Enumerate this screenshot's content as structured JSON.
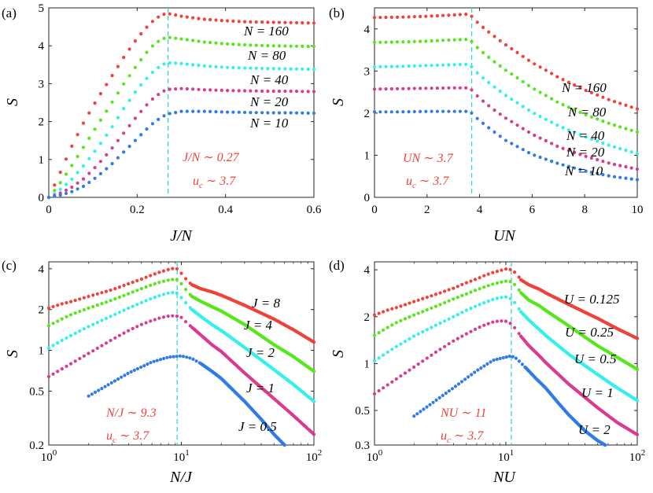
{
  "chart_data": [
    {
      "type": "scatter",
      "panel_label": "(a)",
      "xlabel": "J/N",
      "ylabel": "S",
      "xscale": "linear",
      "yscale": "linear",
      "xlim": [
        0,
        0.6
      ],
      "ylim": [
        0,
        5
      ],
      "xticks": [
        0,
        0.2,
        0.4,
        0.6
      ],
      "xtick_labels": [
        "0",
        "0.2",
        "0.4",
        "0.6"
      ],
      "yticks": [
        0,
        1,
        2,
        3,
        4,
        5
      ],
      "ytick_labels": [
        "0",
        "1",
        "2",
        "3",
        "4",
        "5"
      ],
      "series": [
        {
          "name": "N = 160",
          "color": "#f0413a",
          "x": [
            0,
            0.02,
            0.05,
            0.08,
            0.11,
            0.14,
            0.17,
            0.2,
            0.23,
            0.255,
            0.27,
            0.3,
            0.35,
            0.4,
            0.45,
            0.5,
            0.55,
            0.6
          ],
          "y": [
            0,
            0.5,
            1.3,
            2.0,
            2.6,
            3.15,
            3.7,
            4.2,
            4.6,
            4.82,
            4.85,
            4.78,
            4.7,
            4.66,
            4.63,
            4.62,
            4.61,
            4.6
          ]
        },
        {
          "name": "N = 80",
          "color": "#55e71a",
          "x": [
            0,
            0.02,
            0.05,
            0.08,
            0.11,
            0.14,
            0.17,
            0.2,
            0.23,
            0.255,
            0.27,
            0.3,
            0.35,
            0.4,
            0.45,
            0.5,
            0.55,
            0.6
          ],
          "y": [
            0,
            0.28,
            0.8,
            1.35,
            1.9,
            2.45,
            3.0,
            3.5,
            3.95,
            4.18,
            4.22,
            4.18,
            4.1,
            4.05,
            4.02,
            4.0,
            3.99,
            3.98
          ]
        },
        {
          "name": "N = 40",
          "color": "#33f0ee",
          "x": [
            0,
            0.02,
            0.05,
            0.08,
            0.11,
            0.14,
            0.17,
            0.2,
            0.23,
            0.255,
            0.27,
            0.3,
            0.35,
            0.4,
            0.45,
            0.5,
            0.55,
            0.6
          ],
          "y": [
            0,
            0.15,
            0.45,
            0.85,
            1.3,
            1.8,
            2.35,
            2.85,
            3.25,
            3.5,
            3.55,
            3.53,
            3.47,
            3.43,
            3.41,
            3.4,
            3.39,
            3.38
          ]
        },
        {
          "name": "N = 20",
          "color": "#d93c8f",
          "x": [
            0,
            0.02,
            0.05,
            0.08,
            0.11,
            0.14,
            0.17,
            0.2,
            0.23,
            0.255,
            0.27,
            0.3,
            0.35,
            0.4,
            0.45,
            0.5,
            0.55,
            0.6
          ],
          "y": [
            0,
            0.08,
            0.25,
            0.5,
            0.85,
            1.25,
            1.7,
            2.15,
            2.55,
            2.78,
            2.85,
            2.87,
            2.84,
            2.82,
            2.81,
            2.8,
            2.8,
            2.79
          ]
        },
        {
          "name": "N = 10",
          "color": "#2f7ce8",
          "x": [
            0,
            0.02,
            0.05,
            0.08,
            0.11,
            0.14,
            0.17,
            0.2,
            0.23,
            0.255,
            0.27,
            0.3,
            0.35,
            0.4,
            0.45,
            0.5,
            0.55,
            0.6
          ],
          "y": [
            0,
            0.04,
            0.14,
            0.3,
            0.55,
            0.85,
            1.2,
            1.55,
            1.9,
            2.12,
            2.2,
            2.27,
            2.27,
            2.25,
            2.24,
            2.23,
            2.23,
            2.22
          ]
        }
      ],
      "vline": 0.27,
      "curve_labels": [
        "N = 160",
        "N = 80",
        "N = 40",
        "N = 20",
        "N = 10"
      ],
      "annotations": [
        "J/N ∼ 0.27",
        "u​c ∼ 3.7"
      ]
    },
    {
      "type": "scatter",
      "panel_label": "(b)",
      "xlabel": "UN",
      "ylabel": "S",
      "xscale": "linear",
      "yscale": "linear",
      "xlim": [
        0,
        10
      ],
      "ylim": [
        0,
        4.5
      ],
      "xticks": [
        0,
        2,
        4,
        6,
        8,
        10
      ],
      "xtick_labels": [
        "0",
        "2",
        "4",
        "6",
        "8",
        "10"
      ],
      "yticks": [
        0,
        1,
        2,
        3,
        4
      ],
      "ytick_labels": [
        "0",
        "1",
        "2",
        "3",
        "4"
      ],
      "series": [
        {
          "name": "N = 160",
          "color": "#f0413a",
          "x": [
            0,
            1,
            2,
            3,
            3.5,
            3.7,
            4,
            4.5,
            5,
            6,
            7,
            8,
            9,
            10
          ],
          "y": [
            4.27,
            4.28,
            4.3,
            4.33,
            4.35,
            4.3,
            4.1,
            3.85,
            3.62,
            3.2,
            2.85,
            2.55,
            2.3,
            2.1
          ]
        },
        {
          "name": "N = 80",
          "color": "#55e71a",
          "x": [
            0,
            1,
            2,
            3,
            3.5,
            3.7,
            4,
            4.5,
            5,
            6,
            7,
            8,
            9,
            10
          ],
          "y": [
            3.68,
            3.69,
            3.71,
            3.74,
            3.75,
            3.7,
            3.5,
            3.25,
            3.02,
            2.6,
            2.25,
            1.97,
            1.74,
            1.55
          ]
        },
        {
          "name": "N = 40",
          "color": "#33f0ee",
          "x": [
            0,
            1,
            2,
            3,
            3.5,
            3.7,
            4,
            4.5,
            5,
            6,
            7,
            8,
            9,
            10
          ],
          "y": [
            3.1,
            3.11,
            3.13,
            3.15,
            3.16,
            3.1,
            2.9,
            2.65,
            2.42,
            2.02,
            1.7,
            1.44,
            1.22,
            1.04
          ]
        },
        {
          "name": "N = 20",
          "color": "#d93c8f",
          "x": [
            0,
            1,
            2,
            3,
            3.5,
            3.7,
            4,
            4.5,
            5,
            6,
            7,
            8,
            9,
            10
          ],
          "y": [
            2.57,
            2.58,
            2.59,
            2.6,
            2.6,
            2.55,
            2.35,
            2.1,
            1.88,
            1.5,
            1.2,
            0.98,
            0.8,
            0.67
          ]
        },
        {
          "name": "N = 10",
          "color": "#2f7ce8",
          "x": [
            0,
            1,
            2,
            3,
            3.5,
            3.7,
            4,
            4.5,
            5,
            6,
            7,
            8,
            9,
            10
          ],
          "y": [
            2.03,
            2.03,
            2.04,
            2.04,
            2.04,
            2.0,
            1.82,
            1.58,
            1.35,
            1.02,
            0.8,
            0.63,
            0.5,
            0.42
          ]
        }
      ],
      "vline": 3.7,
      "curve_labels": [
        "N = 160",
        "N = 80",
        "N = 40",
        "N = 20",
        "N = 10"
      ],
      "annotations": [
        "UN ∼ 3.7",
        "u​c ∼ 3.7"
      ]
    },
    {
      "type": "scatter",
      "panel_label": "(c)",
      "xlabel": "N/J",
      "ylabel": "S",
      "xscale": "log",
      "yscale": "log",
      "xlim": [
        1,
        100
      ],
      "ylim": [
        0.2,
        4.5
      ],
      "xticks": [
        1,
        10,
        100
      ],
      "xtick_labels": [
        "10^0",
        "10^1",
        "10^2"
      ],
      "yticks": [
        0.2,
        0.5,
        1,
        2,
        4
      ],
      "ytick_labels": [
        "0.2",
        "0.5",
        "1",
        "2",
        "4"
      ],
      "series": [
        {
          "name": "J = 8",
          "color": "#f0413a",
          "x": [
            1,
            1.25,
            1.5,
            2,
            3,
            4,
            5,
            6,
            7,
            8,
            9,
            9.5,
            10,
            11,
            12,
            14,
            17,
            20,
            30,
            50,
            70,
            100
          ],
          "y": [
            2.05,
            2.2,
            2.3,
            2.5,
            2.8,
            3.1,
            3.35,
            3.6,
            3.8,
            3.95,
            4.05,
            3.95,
            3.7,
            3.3,
            3.05,
            2.85,
            2.7,
            2.55,
            2.15,
            1.7,
            1.42,
            1.15
          ]
        },
        {
          "name": "J = 4",
          "color": "#55e71a",
          "x": [
            1,
            1.25,
            1.5,
            2,
            3,
            4,
            5,
            6,
            7,
            8,
            9,
            9.5,
            10,
            11,
            12,
            14,
            17,
            20,
            30,
            50,
            70,
            100
          ],
          "y": [
            1.52,
            1.7,
            1.85,
            2.05,
            2.35,
            2.62,
            2.85,
            3.05,
            3.2,
            3.3,
            3.35,
            3.3,
            3.1,
            2.75,
            2.5,
            2.3,
            2.1,
            1.95,
            1.55,
            1.1,
            0.9,
            0.7
          ]
        },
        {
          "name": "J = 2",
          "color": "#33f0ee",
          "x": [
            1,
            1.25,
            1.5,
            2,
            3,
            4,
            5,
            6,
            7,
            8,
            9,
            9.5,
            10,
            11,
            12,
            14,
            17,
            20,
            30,
            50,
            70,
            100
          ],
          "y": [
            1.04,
            1.18,
            1.3,
            1.5,
            1.8,
            2.05,
            2.25,
            2.42,
            2.55,
            2.65,
            2.68,
            2.6,
            2.45,
            2.2,
            2.0,
            1.78,
            1.55,
            1.4,
            1.05,
            0.72,
            0.56,
            0.42
          ]
        },
        {
          "name": "J = 1",
          "color": "#d93c8f",
          "x": [
            1,
            2,
            3,
            4,
            5,
            6,
            7,
            8,
            9,
            10,
            11,
            12,
            14,
            17,
            20,
            30,
            50,
            70,
            100
          ],
          "y": [
            0.64,
            0.95,
            1.2,
            1.4,
            1.55,
            1.66,
            1.74,
            1.79,
            1.8,
            1.75,
            1.6,
            1.48,
            1.3,
            1.1,
            0.98,
            0.68,
            0.44,
            0.33,
            0.24
          ]
        },
        {
          "name": "J = 0.5",
          "color": "#2f7ce8",
          "x": [
            2,
            4,
            6,
            8,
            10,
            12,
            14,
            17,
            20,
            25,
            30,
            40,
            50,
            60
          ],
          "y": [
            0.46,
            0.68,
            0.82,
            0.89,
            0.91,
            0.87,
            0.8,
            0.7,
            0.62,
            0.5,
            0.42,
            0.31,
            0.24,
            0.2
          ]
        }
      ],
      "vline": 9.3,
      "curve_labels": [
        "J = 8",
        "J = 4",
        "J = 2",
        "J = 1",
        "J = 0.5"
      ],
      "annotations": [
        "N/J ∼ 9.3",
        "u​c ∼ 3.7"
      ]
    },
    {
      "type": "scatter",
      "panel_label": "(d)",
      "xlabel": "NU",
      "ylabel": "S",
      "xscale": "log",
      "yscale": "log",
      "xlim": [
        1,
        100
      ],
      "ylim": [
        0.3,
        4.5
      ],
      "xticks": [
        1,
        10,
        100
      ],
      "xtick_labels": [
        "10^0",
        "10^1",
        "10^2"
      ],
      "yticks": [
        0.3,
        0.5,
        1,
        2,
        4
      ],
      "ytick_labels": [
        "0.3",
        "0.5",
        "1",
        "2",
        "4"
      ],
      "series": [
        {
          "name": "U = 0.125",
          "color": "#f0413a",
          "x": [
            1,
            1.25,
            1.5,
            2,
            3,
            4,
            5,
            6,
            7,
            8,
            9,
            10,
            11,
            12,
            13,
            15,
            18,
            20,
            30,
            50,
            70,
            100
          ],
          "y": [
            2.05,
            2.2,
            2.3,
            2.5,
            2.8,
            3.05,
            3.3,
            3.5,
            3.7,
            3.85,
            3.95,
            4.05,
            4.0,
            3.8,
            3.45,
            3.2,
            3.0,
            2.85,
            2.4,
            1.95,
            1.68,
            1.45
          ]
        },
        {
          "name": "U = 0.25",
          "color": "#55e71a",
          "x": [
            1,
            1.25,
            1.5,
            2,
            3,
            4,
            5,
            6,
            7,
            8,
            9,
            10,
            11,
            12,
            13,
            15,
            18,
            20,
            30,
            50,
            70,
            100
          ],
          "y": [
            1.52,
            1.7,
            1.85,
            2.05,
            2.35,
            2.6,
            2.8,
            2.98,
            3.12,
            3.24,
            3.32,
            3.38,
            3.35,
            3.15,
            2.85,
            2.55,
            2.35,
            2.2,
            1.75,
            1.3,
            1.1,
            0.92
          ]
        },
        {
          "name": "U = 0.5",
          "color": "#33f0ee",
          "x": [
            1,
            1.25,
            1.5,
            2,
            3,
            4,
            5,
            6,
            7,
            8,
            9,
            10,
            11,
            12,
            13,
            15,
            18,
            20,
            30,
            50,
            70,
            100
          ],
          "y": [
            1.04,
            1.18,
            1.3,
            1.5,
            1.78,
            2.0,
            2.2,
            2.35,
            2.48,
            2.58,
            2.65,
            2.68,
            2.6,
            2.4,
            2.15,
            1.9,
            1.65,
            1.52,
            1.15,
            0.85,
            0.7,
            0.58
          ]
        },
        {
          "name": "U = 1",
          "color": "#d93c8f",
          "x": [
            1,
            2,
            3,
            4,
            5,
            6,
            7,
            8,
            9,
            10,
            11,
            12,
            13,
            15,
            18,
            20,
            30,
            50,
            70,
            100
          ],
          "y": [
            0.64,
            0.95,
            1.2,
            1.4,
            1.55,
            1.68,
            1.78,
            1.85,
            1.88,
            1.87,
            1.8,
            1.65,
            1.5,
            1.3,
            1.12,
            1.02,
            0.74,
            0.52,
            0.42,
            0.35
          ]
        },
        {
          "name": "U = 2",
          "color": "#2f7ce8",
          "x": [
            2,
            4,
            6,
            8,
            10,
            11,
            12,
            14,
            17,
            20,
            25,
            30,
            40,
            50,
            57
          ],
          "y": [
            0.46,
            0.7,
            0.9,
            1.05,
            1.1,
            1.12,
            1.08,
            0.95,
            0.8,
            0.7,
            0.56,
            0.47,
            0.37,
            0.32,
            0.3
          ]
        }
      ],
      "vline": 11,
      "curve_labels": [
        "U = 0.125",
        "U = 0.25",
        "U = 0.5",
        "U = 1",
        "U = 2"
      ],
      "annotations": [
        "NU ∼ 11",
        "u​c ∼ 3.7"
      ]
    }
  ]
}
